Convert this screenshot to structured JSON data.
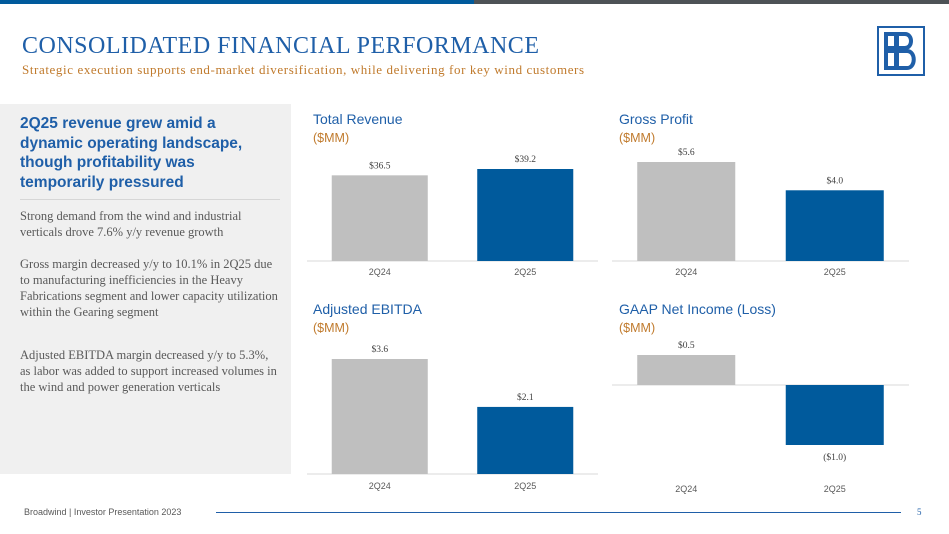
{
  "header": {
    "title": "CONSOLIDATED FINANCIAL PERFORMANCE",
    "subtitle": "Strategic execution supports end-market diversification, while delivering for key wind customers"
  },
  "left_panel": {
    "heading": "2Q25 revenue grew amid a dynamic operating landscape, though profitability was temporarily pressured",
    "paragraphs": [
      "Strong demand from the wind and industrial verticals drove 7.6% y/y revenue growth",
      "Gross margin decreased y/y to 10.1% in 2Q25 due to manufacturing inefficiencies in the Heavy Fabrications segment and lower capacity utilization within the Gearing segment",
      "Adjusted EBITDA margin decreased y/y to 5.3%, as labor was added to support increased volumes in the wind and power generation verticals"
    ]
  },
  "colors": {
    "prior_period": "#bfbfbf",
    "current_period": "#005a9c",
    "title_blue": "#1f5fa8",
    "unit_orange": "#c07a2c"
  },
  "chart_data": [
    {
      "type": "bar",
      "title": "Total Revenue",
      "unit": "($MM)",
      "categories": [
        "2Q24",
        "2Q25"
      ],
      "values": [
        36.5,
        39.2
      ],
      "value_labels": [
        "$36.5",
        "$39.2"
      ]
    },
    {
      "type": "bar",
      "title": "Gross Profit",
      "unit": "($MM)",
      "categories": [
        "2Q24",
        "2Q25"
      ],
      "values": [
        5.6,
        4.0
      ],
      "value_labels": [
        "$5.6",
        "$4.0"
      ]
    },
    {
      "type": "bar",
      "title": "Adjusted EBITDA",
      "unit": "($MM)",
      "categories": [
        "2Q24",
        "2Q25"
      ],
      "values": [
        3.6,
        2.1
      ],
      "value_labels": [
        "$3.6",
        "$2.1"
      ]
    },
    {
      "type": "bar",
      "title": "GAAP Net Income (Loss)",
      "unit": "($MM)",
      "categories": [
        "2Q24",
        "2Q25"
      ],
      "values": [
        0.5,
        -1.0
      ],
      "value_labels": [
        "$0.5",
        "($1.0)"
      ]
    }
  ],
  "footer": {
    "text": "Broadwind | Investor Presentation 2023",
    "page_number": "5"
  }
}
